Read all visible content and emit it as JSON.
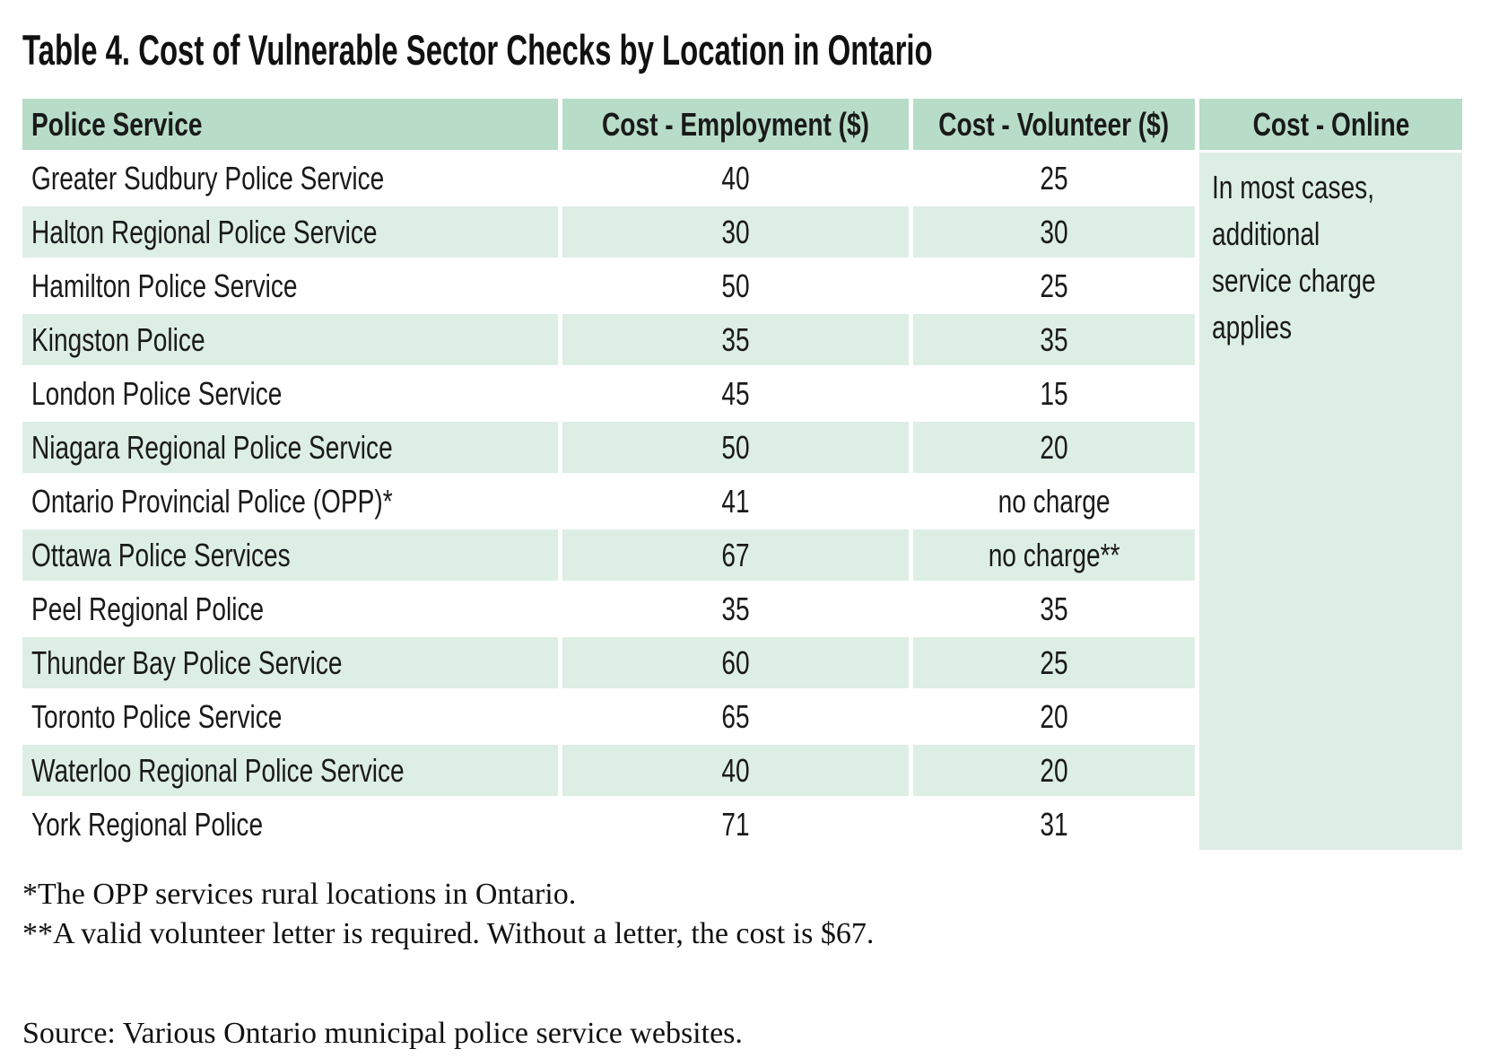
{
  "title": "Table 4. Cost of Vulnerable Sector Checks by Location in Ontario",
  "table": {
    "columns": [
      "Police Service",
      "Cost - Employment ($)",
      "Cost - Volunteer ($)",
      "Cost - Online"
    ],
    "rows": [
      {
        "service": "Greater Sudbury Police Service",
        "employment": "40",
        "volunteer": "25"
      },
      {
        "service": "Halton Regional Police Service",
        "employment": "30",
        "volunteer": "30"
      },
      {
        "service": "Hamilton Police Service",
        "employment": "50",
        "volunteer": "25"
      },
      {
        "service": "Kingston Police",
        "employment": "35",
        "volunteer": "35"
      },
      {
        "service": "London Police Service",
        "employment": "45",
        "volunteer": "15"
      },
      {
        "service": "Niagara Regional Police Service",
        "employment": "50",
        "volunteer": "20"
      },
      {
        "service": "Ontario Provincial Police (OPP)*",
        "employment": "41",
        "volunteer": "no charge"
      },
      {
        "service": "Ottawa Police Services",
        "employment": "67",
        "volunteer": "no charge**"
      },
      {
        "service": "Peel Regional Police",
        "employment": "35",
        "volunteer": "35"
      },
      {
        "service": "Thunder Bay Police Service",
        "employment": "60",
        "volunteer": "25"
      },
      {
        "service": "Toronto Police Service",
        "employment": "65",
        "volunteer": "20"
      },
      {
        "service": "Waterloo Regional Police Service",
        "employment": "40",
        "volunteer": "20"
      },
      {
        "service": "York Regional Police",
        "employment": "71",
        "volunteer": "31"
      }
    ],
    "online_note": "In most cases, additional service charge applies"
  },
  "footnotes": [
    "*The OPP services rural locations in Ontario.",
    "**A valid volunteer letter is required. Without a letter, the cost is $67."
  ],
  "source": "Source: Various Ontario municipal police service websites.",
  "colors": {
    "header_green": "#b7dcc7",
    "row_green": "#ddeee5",
    "text_color": "#1a1a1a"
  }
}
